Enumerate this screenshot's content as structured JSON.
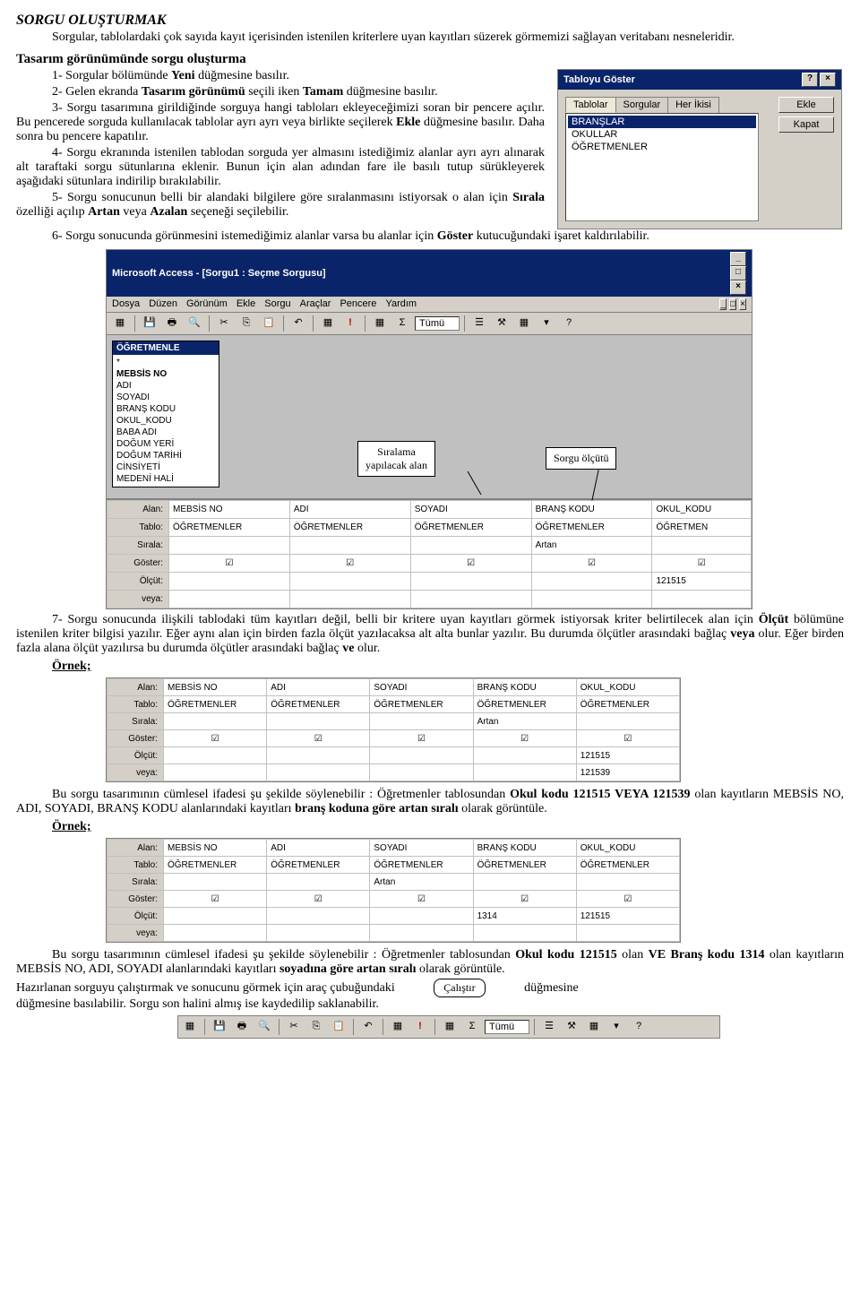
{
  "title": "SORGU OLUŞTURMAK",
  "intro": "Sorgular, tablolardaki çok sayıda kayıt içerisinden istenilen kriterlere uyan kayıtları süzerek görmemizi sağlayan veritabanı nesneleridir.",
  "section1_heading": "Tasarım görünümünde sorgu oluşturma",
  "steps": {
    "s1": "1-  Sorgular bölümünde ",
    "s1b": "Yeni",
    "s1c": " düğmesine basılır.",
    "s2": "2-  Gelen ekranda ",
    "s2b": "Tasarım görünümü",
    "s2c": " seçili iken ",
    "s2d": "Tamam",
    "s2e": " düğmesine basılır.",
    "s3": "3-  Sorgu tasarımına girildiğinde sorguya hangi tabloları ekleyeceğimizi soran bir pencere açılır. Bu pencerede sorguda kullanılacak tablolar ayrı ayrı veya birlikte seçilerek ",
    "s3b": "Ekle",
    "s3c": " düğmesine basılır. Daha sonra bu pencere kapatılır.",
    "s4": "4-  Sorgu ekranında istenilen tablodan sorguda yer almasını istediğimiz alanlar ayrı ayrı alınarak alt taraftaki sorgu sütunlarına eklenir. Bunun için alan adından fare ile basılı tutup sürükleyerek aşağıdaki sütunlara indirilip bırakılabilir.",
    "s5": "5-  Sorgu sonucunun belli bir alandaki bilgilere göre sıralanmasını istiyorsak o alan için ",
    "s5b": "Sırala",
    "s5c": " özelliği açılıp ",
    "s5d": "Artan",
    "s5e": " veya ",
    "s5f": "Azalan",
    "s5g": " seçeneği seçilebilir.",
    "s6": "6-  Sorgu sonucunda görünmesini istemediğimiz alanlar varsa bu alanlar için ",
    "s6b": "Göster",
    "s6c": " kutucuğundaki işaret kaldırılabilir."
  },
  "dialog": {
    "title": "Tabloyu Göster",
    "tabs": [
      "Tablolar",
      "Sorgular",
      "Her İkisi"
    ],
    "items": [
      "BRANŞLAR",
      "OKULLAR",
      "ÖĞRETMENLER"
    ],
    "btn_add": "Ekle",
    "btn_close": "Kapat",
    "help": "?",
    "close": "×"
  },
  "access": {
    "win_title": "Microsoft Access - [Sorgu1 : Seçme Sorgusu]",
    "menu": [
      "Dosya",
      "Düzen",
      "Görünüm",
      "Ekle",
      "Sorgu",
      "Araçlar",
      "Pencere",
      "Yardım"
    ],
    "toolbar_text": "Tümü",
    "fieldbox_title": "ÖĞRETMENLE",
    "fields": [
      "*",
      "MEBSİS NO",
      "ADI",
      "SOYADI",
      "BRANŞ KODU",
      "OKUL_KODU",
      "BABA ADI",
      "DOĞUM YERİ",
      "DOĞUM TARİHİ",
      "CİNSİYETİ",
      "MEDENİ HALİ"
    ],
    "callout_sort": "Sıralama\nyapılacak alan",
    "callout_crit": "Sorgu ölçütü",
    "row_labels": [
      "Alan:",
      "Tablo:",
      "Sırala:",
      "Göster:",
      "Ölçüt:",
      "veya:"
    ],
    "grid": {
      "alan": [
        "MEBSİS NO",
        "ADI",
        "SOYADI",
        "BRANŞ KODU",
        "OKUL_KODU"
      ],
      "tablo": [
        "ÖĞRETMENLER",
        "ÖĞRETMENLER",
        "ÖĞRETMENLER",
        "ÖĞRETMENLER",
        "ÖĞRETMEN"
      ],
      "sirala": [
        "",
        "",
        "",
        "Artan",
        ""
      ],
      "goster": [
        true,
        true,
        true,
        true,
        true
      ],
      "olcut": [
        "",
        "",
        "",
        "",
        "121515"
      ],
      "veya": [
        "",
        "",
        "",
        "",
        ""
      ]
    }
  },
  "p7": "7-  Sorgu sonucunda ilişkili tablodaki tüm kayıtları değil, belli bir kritere uyan kayıtları görmek istiyorsak kriter belirtilecek alan için ",
  "p7b": "Ölçüt",
  "p7c": " bölümüne istenilen kriter bilgisi yazılır. Eğer aynı alan için birden fazla ölçüt yazılacaksa alt alta bunlar yazılır. Bu durumda ölçütler arasındaki bağlaç ",
  "p7d": "veya",
  "p7e": " olur. Eğer birden fazla alana ölçüt yazılırsa bu durumda ölçütler arasındaki bağlaç ",
  "p7f": "ve",
  "p7g": " olur.",
  "ornek": "Örnek;",
  "ex1": {
    "alan": [
      "MEBSİS NO",
      "ADI",
      "SOYADI",
      "BRANŞ KODU",
      "OKUL_KODU"
    ],
    "tablo": [
      "ÖĞRETMENLER",
      "ÖĞRETMENLER",
      "ÖĞRETMENLER",
      "ÖĞRETMENLER",
      "ÖĞRETMENLER"
    ],
    "sirala": [
      "",
      "",
      "",
      "Artan",
      ""
    ],
    "goster": [
      true,
      true,
      true,
      true,
      true
    ],
    "olcut": [
      "",
      "",
      "",
      "",
      "121515"
    ],
    "veya": [
      "",
      "",
      "",
      "",
      "121539"
    ]
  },
  "ex1_text_a": "Bu sorgu tasarımının cümlesel ifadesi şu şekilde söylenebilir : Öğretmenler tablosundan ",
  "ex1_text_b": "Okul kodu 121515 VEYA 121539",
  "ex1_text_c": " olan kayıtların MEBSİS NO, ADI, SOYADI, BRANŞ KODU alanlarındaki kayıtları ",
  "ex1_text_d": "branş koduna göre artan sıralı",
  "ex1_text_e": " olarak görüntüle.",
  "ex2": {
    "alan": [
      "MEBSİS NO",
      "ADI",
      "SOYADI",
      "BRANŞ KODU",
      "OKUL_KODU"
    ],
    "tablo": [
      "ÖĞRETMENLER",
      "ÖĞRETMENLER",
      "ÖĞRETMENLER",
      "ÖĞRETMENLER",
      "ÖĞRETMENLER"
    ],
    "sirala": [
      "",
      "",
      "Artan",
      "",
      ""
    ],
    "goster": [
      true,
      true,
      true,
      true,
      true
    ],
    "olcut": [
      "",
      "",
      "",
      "1314",
      "121515"
    ],
    "veya": [
      "",
      "",
      "",
      "",
      ""
    ]
  },
  "ex2_text_a": "Bu sorgu tasarımının cümlesel ifadesi şu şekilde söylenebilir : Öğretmenler tablosundan ",
  "ex2_text_b": "Okul kodu 121515",
  "ex2_text_c": " olan ",
  "ex2_text_d": "VE Branş kodu 1314",
  "ex2_text_e": " olan kayıtların MEBSİS NO, ADI, SOYADI alanlarındaki kayıtları ",
  "ex2_text_f": "soyadına göre artan sıralı",
  "ex2_text_g": " olarak görüntüle.",
  "final_a": "Hazırlanan sorguyu çalıştırmak ve sonucunu görmek için araç çubuğundaki",
  "final_b": "düğmesine basılabilir. Sorgu son halini almış ise kaydedilip saklanabilir.",
  "calistir": "Çalıştır",
  "tb_tumu": "Tümü"
}
